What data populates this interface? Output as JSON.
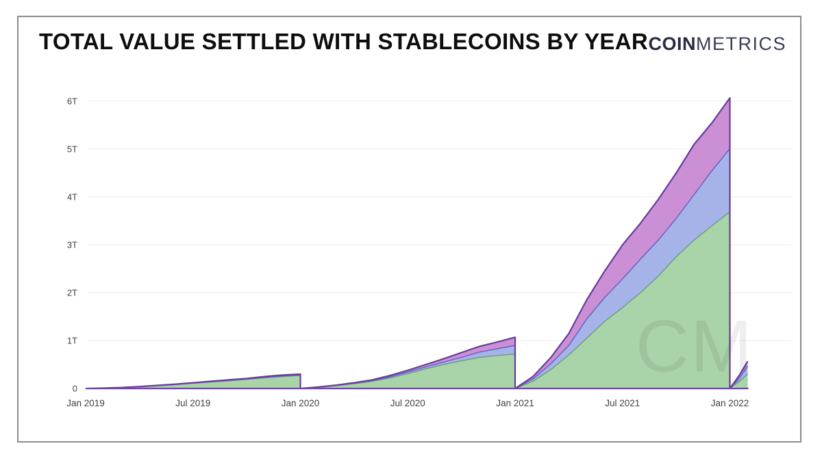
{
  "header": {
    "title": "TOTAL VALUE SETTLED WITH STABLECOINS BY YEAR",
    "logo": {
      "bold": "COIN",
      "light": "METRICS"
    }
  },
  "watermark": "CM",
  "chart_data": {
    "type": "area",
    "stacked": true,
    "title": "TOTAL VALUE SETTLED WITH STABLECOINS BY YEAR",
    "ylabel": "",
    "xlabel": "",
    "y_unit": "trillions of USD settled (cumulative within each year, resets every January)",
    "ylim": [
      0,
      6.5
    ],
    "grid": "horizontal",
    "legend": "none",
    "x_tick_labels": [
      "Jan 2019",
      "Jul 2019",
      "Jan 2020",
      "Jul 2020",
      "Jan 2021",
      "Jul 2021",
      "Jan 2022"
    ],
    "y_tick_labels": [
      "0",
      "1T",
      "2T",
      "3T",
      "4T",
      "5T",
      "6T"
    ],
    "series_meta": [
      {
        "name": "green-bottom-layer",
        "fill": "#a9d3a9",
        "stroke": "#66a06a"
      },
      {
        "name": "blue-middle-layer",
        "fill": "#a6b3e8",
        "stroke": "#5563c1"
      },
      {
        "name": "purple-top-layer",
        "fill": "#cb8fd6",
        "stroke": "#6a3a9e"
      }
    ],
    "years": [
      {
        "year": "2019",
        "points": [
          [
            0,
            0,
            0,
            0
          ],
          [
            1,
            0.01,
            0.01,
            0.01
          ],
          [
            2,
            0.02,
            0.02,
            0.02
          ],
          [
            3,
            0.035,
            0.04,
            0.04
          ],
          [
            4,
            0.055,
            0.06,
            0.065
          ],
          [
            5,
            0.08,
            0.085,
            0.09
          ],
          [
            6,
            0.11,
            0.115,
            0.12
          ],
          [
            7,
            0.135,
            0.14,
            0.15
          ],
          [
            8,
            0.16,
            0.17,
            0.18
          ],
          [
            9,
            0.19,
            0.2,
            0.21
          ],
          [
            10,
            0.22,
            0.235,
            0.25
          ],
          [
            11,
            0.25,
            0.265,
            0.28
          ],
          [
            12,
            0.27,
            0.285,
            0.3
          ]
        ]
      },
      {
        "year": "2020",
        "points": [
          [
            0,
            0,
            0,
            0
          ],
          [
            1,
            0.025,
            0.027,
            0.03
          ],
          [
            2,
            0.06,
            0.065,
            0.07
          ],
          [
            3,
            0.1,
            0.11,
            0.12
          ],
          [
            4,
            0.15,
            0.165,
            0.18
          ],
          [
            5,
            0.22,
            0.245,
            0.27
          ],
          [
            6,
            0.31,
            0.345,
            0.38
          ],
          [
            7,
            0.41,
            0.45,
            0.5
          ],
          [
            8,
            0.5,
            0.55,
            0.62
          ],
          [
            9,
            0.58,
            0.65,
            0.75
          ],
          [
            10,
            0.65,
            0.76,
            0.88
          ],
          [
            11,
            0.69,
            0.83,
            0.97
          ],
          [
            12,
            0.72,
            0.9,
            1.07
          ]
        ]
      },
      {
        "year": "2021",
        "points": [
          [
            0,
            0,
            0,
            0
          ],
          [
            1,
            0.15,
            0.2,
            0.25
          ],
          [
            2,
            0.4,
            0.52,
            0.65
          ],
          [
            3,
            0.7,
            0.9,
            1.15
          ],
          [
            4,
            1.05,
            1.45,
            1.85
          ],
          [
            5,
            1.4,
            1.9,
            2.45
          ],
          [
            6,
            1.69,
            2.29,
            3.0
          ],
          [
            7,
            2.0,
            2.7,
            3.45
          ],
          [
            8,
            2.35,
            3.1,
            3.95
          ],
          [
            9,
            2.75,
            3.55,
            4.5
          ],
          [
            10,
            3.1,
            4.05,
            5.1
          ],
          [
            11,
            3.4,
            4.55,
            5.55
          ],
          [
            12,
            3.69,
            5.01,
            6.07
          ]
        ]
      },
      {
        "year": "2022",
        "points": [
          [
            0,
            0,
            0,
            0
          ],
          [
            0.5,
            0.14,
            0.2,
            0.26
          ],
          [
            1,
            0.3,
            0.47,
            0.57
          ]
        ]
      }
    ],
    "point_format": "[month_offset, green_top, blue_top, total] in trillions USD",
    "annotations": {
      "year_end_totals_T": {
        "2019": 0.3,
        "2020": 1.07,
        "2021": 6.07,
        "2022_partial": 0.57
      }
    }
  }
}
